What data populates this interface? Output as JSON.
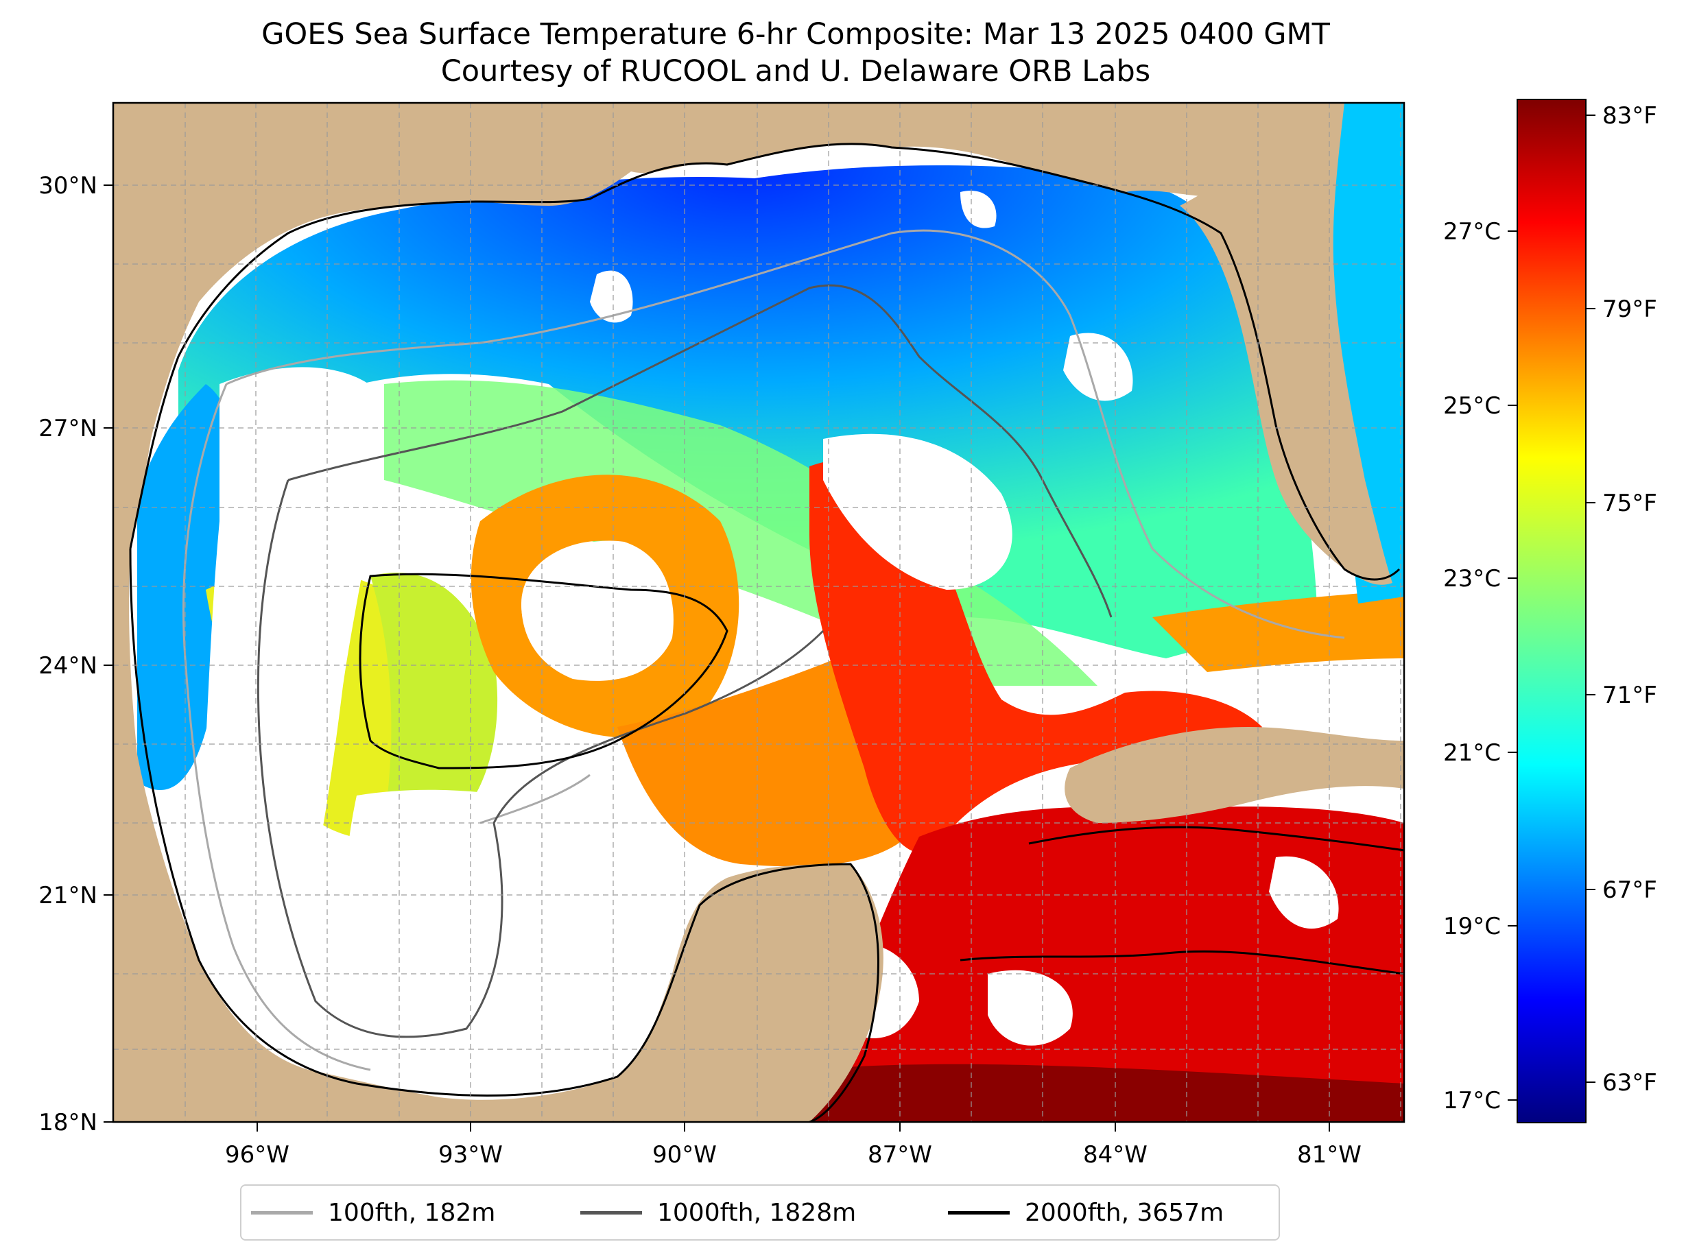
{
  "title": {
    "line1": "GOES Sea Surface Temperature 6-hr Composite: Mar 13 2025 0400 GMT",
    "line2": "Courtesy of RUCOOL and U. Delaware ORB Labs"
  },
  "map": {
    "lon_labels": [
      "96°W",
      "93°W",
      "90°W",
      "87°W",
      "84°W",
      "81°W"
    ],
    "lat_labels": [
      "30°N",
      "27°N",
      "24°N",
      "21°N",
      "18°N"
    ],
    "extent": {
      "lon": [
        -98,
        -80
      ],
      "lat": [
        18,
        31
      ]
    },
    "land_color": "#d2b48c",
    "no_data_color": "#ffffff",
    "gridlines": true
  },
  "colorbar": {
    "colormap": "jet",
    "celsius_labels": [
      "27°C",
      "25°C",
      "23°C",
      "21°C",
      "19°C",
      "17°C"
    ],
    "fahrenheit_labels": [
      "83°F",
      "79°F",
      "75°F",
      "71°F",
      "67°F",
      "63°F"
    ],
    "range_f": [
      62,
      83.5
    ]
  },
  "legend": {
    "items": [
      {
        "label": "100fth, 182m",
        "color": "#a9a9a9"
      },
      {
        "label": "1000fth, 1828m",
        "color": "#555555"
      },
      {
        "label": "2000fth, 3657m",
        "color": "#000000"
      }
    ]
  }
}
